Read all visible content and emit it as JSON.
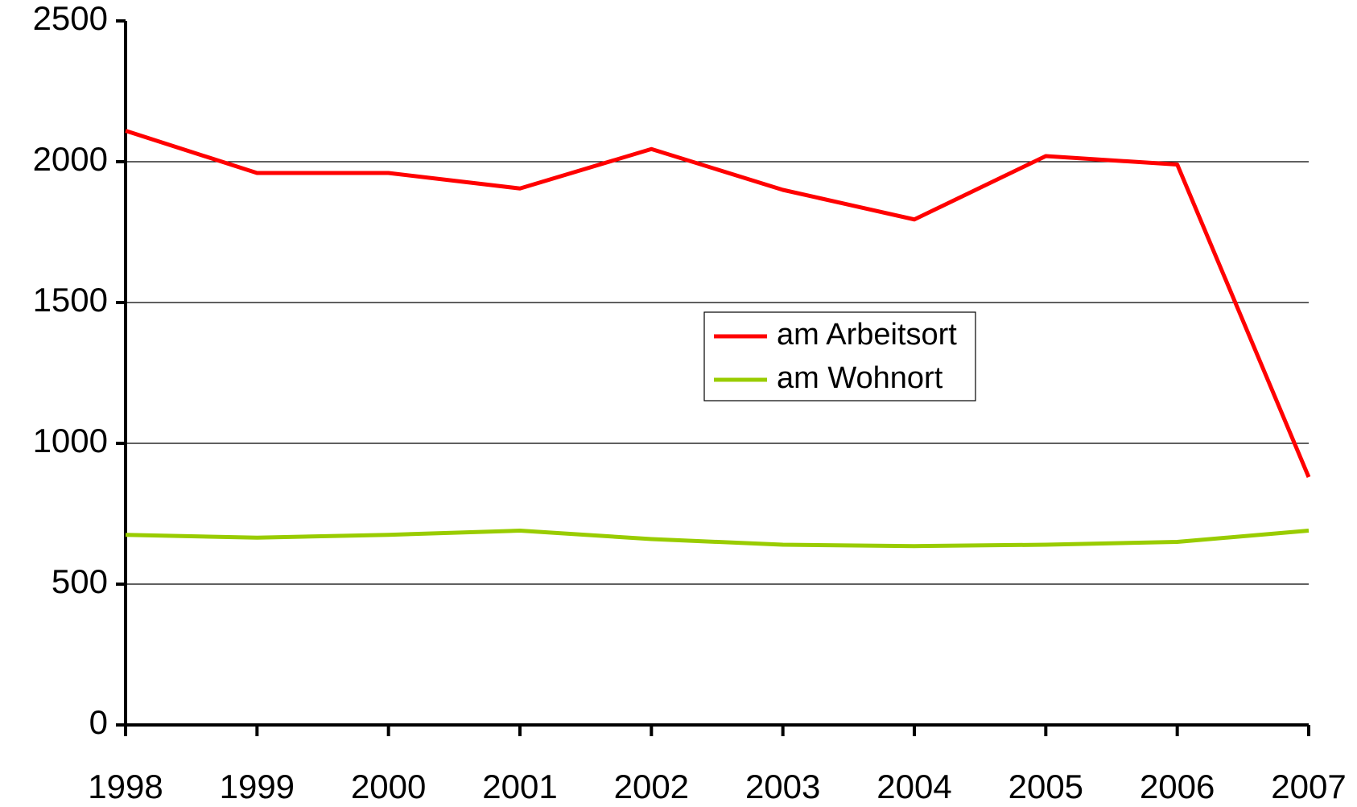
{
  "chart_data": {
    "type": "line",
    "categories": [
      "1998",
      "1999",
      "2000",
      "2001",
      "2002",
      "2003",
      "2004",
      "2005",
      "2006",
      "2007"
    ],
    "series": [
      {
        "name": "am Arbeitsort",
        "color": "#ff0000",
        "values": [
          2110,
          1960,
          1960,
          1905,
          2045,
          1900,
          1795,
          2020,
          1990,
          880
        ]
      },
      {
        "name": "am Wohnort",
        "color": "#99cc00",
        "values": [
          675,
          665,
          675,
          690,
          660,
          640,
          635,
          640,
          650,
          690
        ]
      }
    ],
    "ylim": [
      0,
      2500
    ],
    "yticks": [
      0,
      500,
      1000,
      1500,
      2000,
      2500
    ],
    "grid": true,
    "legend": "center-right"
  }
}
